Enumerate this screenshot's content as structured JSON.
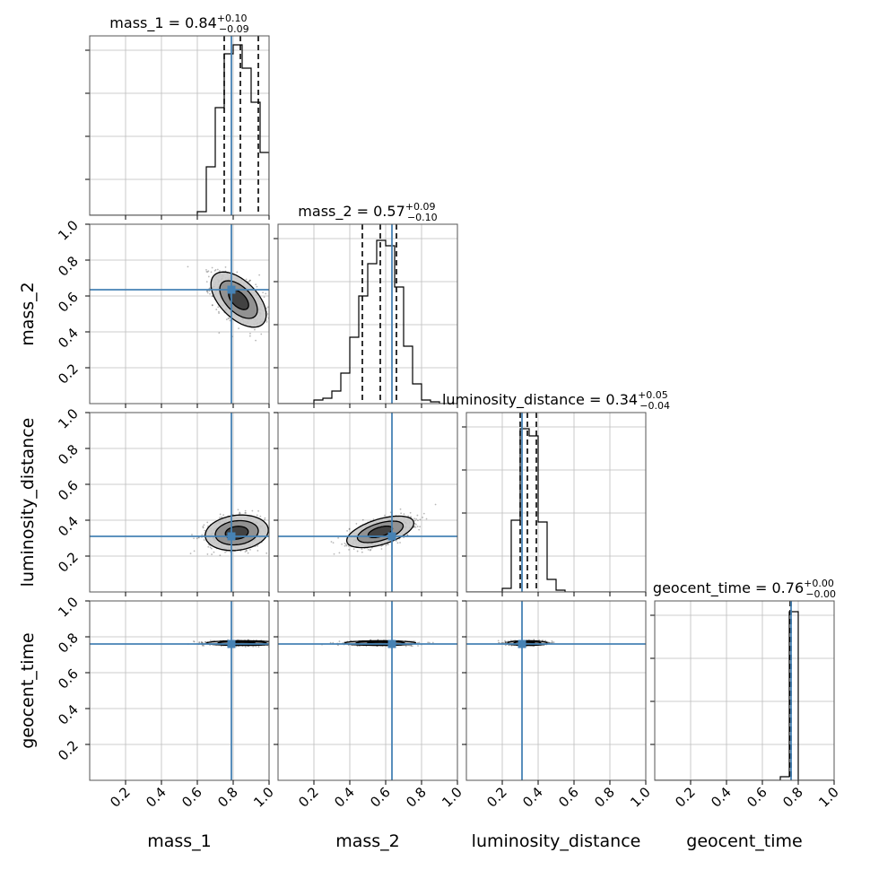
{
  "chart_data": {
    "type": "corner",
    "parameters": [
      "mass_1",
      "mass_2",
      "luminosity_distance",
      "geocent_time"
    ],
    "axis_labels": [
      "mass_1",
      "mass_2",
      "luminosity_distance",
      "geocent_time"
    ],
    "xlim": [
      0,
      1
    ],
    "ylim": [
      0,
      1
    ],
    "x_ticks": [
      "0.2",
      "0.4",
      "0.6",
      "0.8",
      "1.0"
    ],
    "y_ticks": [
      "0.2",
      "0.4",
      "0.6",
      "0.8",
      "1.0"
    ],
    "grid": true,
    "truth_color": "#4682b4",
    "titles": [
      {
        "param": "mass_1",
        "median": "0.84",
        "plus": "+0.10",
        "minus": "−0.09"
      },
      {
        "param": "mass_2",
        "median": "0.57",
        "plus": "+0.09",
        "minus": "−0.10"
      },
      {
        "param": "luminosity_distance",
        "median": "0.34",
        "plus": "+0.05",
        "minus": "−0.04"
      },
      {
        "param": "geocent_time",
        "median": "0.76",
        "plus": "+0.00",
        "minus": "−0.00"
      }
    ],
    "truths": [
      0.79,
      0.635,
      0.31,
      0.76
    ],
    "quantiles": [
      [
        0.75,
        0.84,
        0.94
      ],
      [
        0.47,
        0.57,
        0.66
      ],
      [
        0.3,
        0.34,
        0.39
      ],
      [
        0.755,
        0.76,
        0.76
      ]
    ],
    "histograms": [
      {
        "edges": [
          0.6,
          0.65,
          0.7,
          0.75,
          0.8,
          0.85,
          0.9,
          0.95,
          1.0
        ],
        "counts": [
          0.02,
          0.27,
          0.6,
          0.9,
          0.95,
          0.82,
          0.63,
          0.35
        ]
      },
      {
        "edges": [
          0.2,
          0.25,
          0.3,
          0.35,
          0.4,
          0.45,
          0.5,
          0.55,
          0.6,
          0.65,
          0.7,
          0.75,
          0.8,
          0.85,
          0.9
        ],
        "counts": [
          0.02,
          0.03,
          0.07,
          0.17,
          0.37,
          0.6,
          0.78,
          0.91,
          0.88,
          0.65,
          0.32,
          0.11,
          0.02,
          0.01
        ]
      },
      {
        "edges": [
          0.2,
          0.25,
          0.3,
          0.35,
          0.4,
          0.45,
          0.5,
          0.55
        ],
        "counts": [
          0.02,
          0.4,
          0.91,
          0.87,
          0.39,
          0.07,
          0.01
        ]
      },
      {
        "edges": [
          0.7,
          0.75,
          0.8
        ],
        "counts": [
          0.02,
          0.94
        ]
      }
    ],
    "joint_2d": [
      {
        "x": "mass_1",
        "y": "mass_2",
        "center": [
          0.83,
          0.58
        ],
        "sigma": [
          0.07,
          0.07
        ],
        "rho": -0.55
      },
      {
        "x": "mass_1",
        "y": "luminosity_distance",
        "center": [
          0.82,
          0.33
        ],
        "sigma": [
          0.08,
          0.045
        ],
        "rho": 0.15
      },
      {
        "x": "mass_2",
        "y": "luminosity_distance",
        "center": [
          0.57,
          0.335
        ],
        "sigma": [
          0.085,
          0.04
        ],
        "rho": 0.55
      },
      {
        "x": "mass_1",
        "y": "geocent_time",
        "center": [
          0.85,
          0.765
        ],
        "sigma": [
          0.09,
          0.006
        ],
        "rho": 0
      },
      {
        "x": "mass_2",
        "y": "geocent_time",
        "center": [
          0.57,
          0.765
        ],
        "sigma": [
          0.09,
          0.006
        ],
        "rho": 0
      },
      {
        "x": "luminosity_distance",
        "y": "geocent_time",
        "center": [
          0.34,
          0.765
        ],
        "sigma": [
          0.05,
          0.006
        ],
        "rho": 0
      }
    ]
  }
}
